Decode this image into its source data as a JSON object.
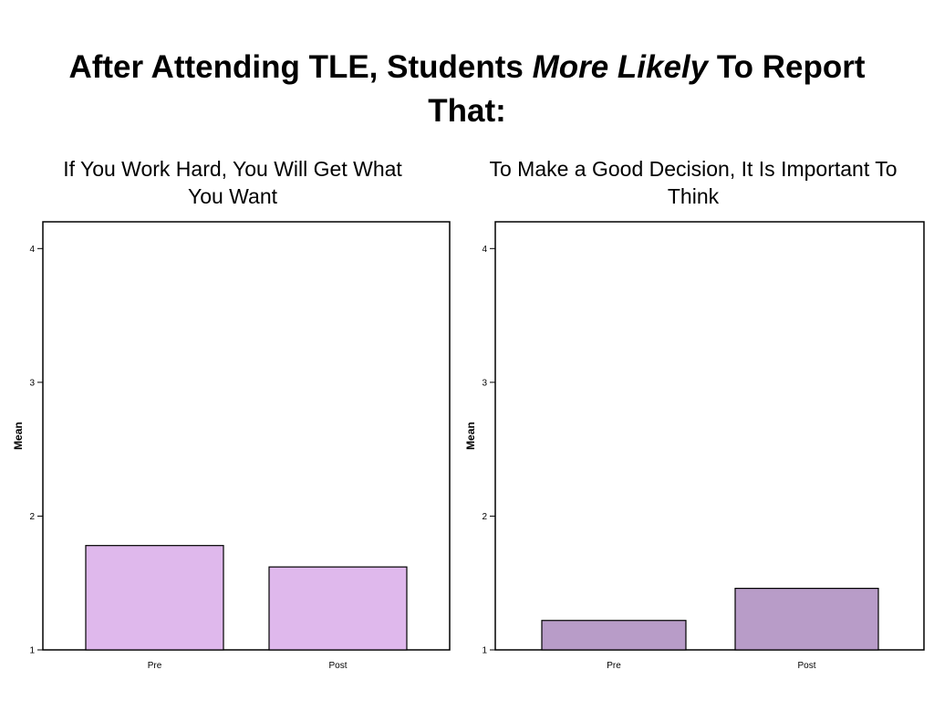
{
  "title": {
    "part1": "After Attending TLE, Students ",
    "emphasis": "More Likely",
    "part2": " To Report That:"
  },
  "chart_data": [
    {
      "type": "bar",
      "title": "If You Work Hard, You Will Get What You Want",
      "ylabel": "Mean",
      "xlabel": "",
      "categories": [
        "Pre",
        "Post"
      ],
      "values": [
        1.78,
        1.62
      ],
      "ylim": [
        1,
        4.2
      ],
      "yticks": [
        1,
        2,
        3,
        4
      ],
      "color": "#dfb8ec",
      "grid": false
    },
    {
      "type": "bar",
      "title": "To Make a Good Decision, It Is Important To Think",
      "ylabel": "Mean",
      "xlabel": "",
      "categories": [
        "Pre",
        "Post"
      ],
      "values": [
        1.22,
        1.46
      ],
      "ylim": [
        1,
        4.2
      ],
      "yticks": [
        1,
        2,
        3,
        4
      ],
      "color": "#b89cc8",
      "grid": false
    }
  ]
}
